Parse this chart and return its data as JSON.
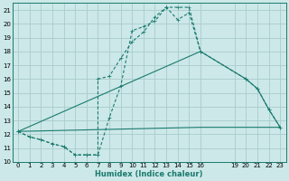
{
  "xlabel": "Humidex (Indice chaleur)",
  "bg_color": "#cce8e8",
  "grid_color": "#aacccc",
  "line_color": "#1a7a6e",
  "xlim": [
    -0.5,
    23.5
  ],
  "ylim": [
    10,
    21.5
  ],
  "yticks": [
    10,
    11,
    12,
    13,
    14,
    15,
    16,
    17,
    18,
    19,
    20,
    21
  ],
  "xticks": [
    0,
    1,
    2,
    3,
    4,
    5,
    6,
    7,
    8,
    9,
    10,
    11,
    12,
    13,
    14,
    15,
    16,
    19,
    20,
    21,
    22,
    23
  ],
  "xtick_labels": [
    "0",
    "1",
    "2",
    "3",
    "4",
    "5",
    "6",
    "7",
    "8",
    "9",
    "10",
    "11",
    "12",
    "13",
    "14",
    "15",
    "16",
    "19",
    "20",
    "21",
    "22",
    "23"
  ],
  "curve1_x": [
    0,
    1,
    2,
    3,
    4,
    5,
    6,
    7,
    8,
    9,
    10,
    11,
    12,
    13,
    14,
    15,
    16,
    20,
    21,
    22,
    23
  ],
  "curve1_y": [
    12.2,
    11.8,
    11.6,
    11.3,
    11.1,
    10.5,
    10.5,
    10.5,
    13.2,
    15.5,
    19.5,
    19.8,
    20.2,
    21.2,
    20.3,
    20.8,
    18.0,
    16.0,
    15.3,
    13.8,
    12.5
  ],
  "curve1_marker": true,
  "curve1_dashed": true,
  "curve2_x": [
    0,
    1,
    2,
    3,
    4,
    5,
    6,
    7,
    7,
    8,
    9,
    10,
    11,
    12,
    13,
    14,
    15,
    16
  ],
  "curve2_y": [
    12.2,
    11.8,
    11.6,
    11.3,
    11.1,
    10.5,
    10.5,
    10.5,
    16.0,
    16.2,
    17.5,
    18.7,
    19.4,
    20.5,
    21.2,
    21.2,
    21.2,
    18.0
  ],
  "curve2_marker": true,
  "curve2_dashed": true,
  "curve3_x": [
    0,
    16,
    20,
    21,
    22,
    23
  ],
  "curve3_y": [
    12.2,
    18.0,
    16.0,
    15.3,
    13.8,
    12.5
  ],
  "curve3_marker": true,
  "curve3_dashed": false,
  "curve4_x": [
    0,
    16,
    20,
    21,
    22,
    23
  ],
  "curve4_y": [
    12.2,
    12.5,
    12.5,
    12.5,
    12.5,
    12.5
  ],
  "curve4_marker": false,
  "curve4_dashed": false
}
